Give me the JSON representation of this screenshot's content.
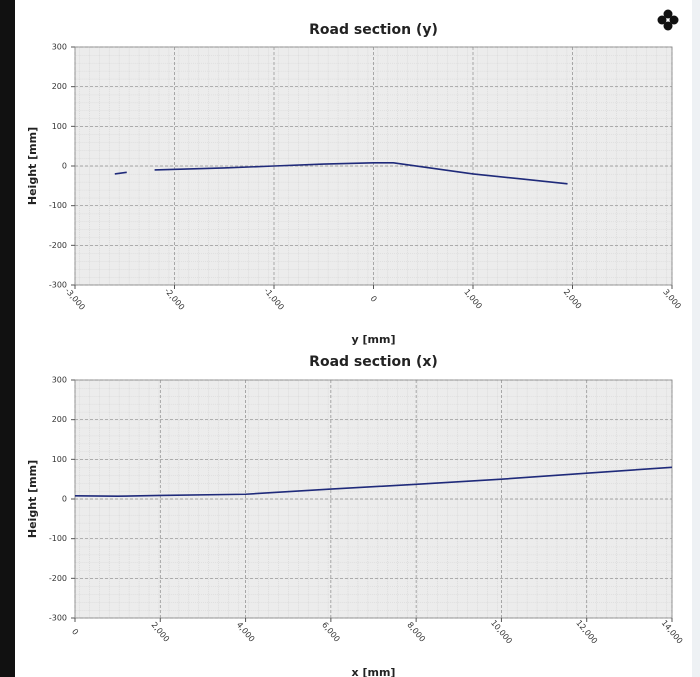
{
  "chart_data": [
    {
      "type": "line",
      "title": "Road section (y)",
      "x_label": "y [mm]",
      "y_label": "Height [mm]",
      "x": [
        -2600,
        -2480,
        -2380,
        -2200,
        -1500,
        -1000,
        -500,
        0,
        200,
        1000,
        1500,
        1950
      ],
      "series": [
        {
          "color": "#1f2a7a",
          "values": [
            -20,
            -16,
            null,
            -10,
            -5,
            0,
            5,
            8,
            8,
            -20,
            -33,
            -45
          ]
        }
      ],
      "xlim": [
        -3000,
        3000
      ],
      "xticks": [
        {
          "value": -3000,
          "label": "-3,000"
        },
        {
          "value": -2000,
          "label": "-2,000"
        },
        {
          "value": -1000,
          "label": "-1,000"
        },
        0,
        {
          "value": 1000,
          "label": "1,000"
        },
        {
          "value": 2000,
          "label": "2,000"
        },
        {
          "value": 3000,
          "label": "3,000"
        }
      ],
      "ylim": [
        -300,
        300
      ],
      "yticks": [
        300,
        200,
        100,
        0,
        -100,
        -200,
        -300
      ],
      "grid": true
    },
    {
      "type": "line",
      "title": "Road section (x)",
      "x_label": "x [mm]",
      "y_label": "Height [mm]",
      "x": [
        0,
        1000,
        2000,
        4000,
        6000,
        8000,
        10000,
        12000,
        14000
      ],
      "series": [
        {
          "color": "#1f2a7a",
          "values": [
            8,
            7,
            9,
            12,
            25,
            37,
            50,
            65,
            80
          ]
        }
      ],
      "xlim": [
        0,
        14000
      ],
      "xticks": [
        0,
        {
          "value": 2000,
          "label": "2,000"
        },
        {
          "value": 4000,
          "label": "4,000"
        },
        {
          "value": 6000,
          "label": "6,000"
        },
        {
          "value": 8000,
          "label": "8,000"
        },
        {
          "value": 10000,
          "label": "10,000"
        },
        {
          "value": 12000,
          "label": "12,000"
        },
        {
          "value": 14000,
          "label": "14,000"
        }
      ],
      "ylim": [
        -300,
        300
      ],
      "yticks": [
        300,
        200,
        100,
        0,
        -100,
        -200,
        -300
      ],
      "grid": true
    }
  ]
}
